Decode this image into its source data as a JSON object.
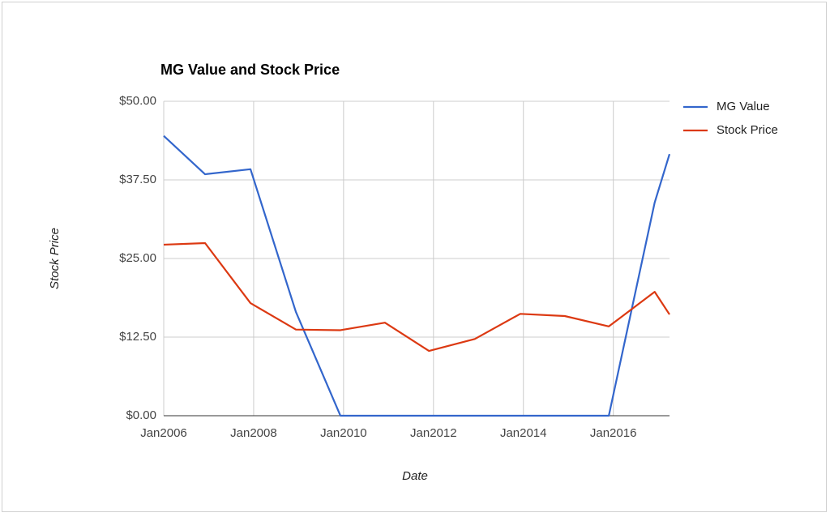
{
  "chart_data": {
    "type": "line",
    "title": "MG Value and Stock Price",
    "x_label": "Date",
    "y_label": "Stock Price",
    "x": [
      2006,
      2006.92,
      2007.93,
      2008.94,
      2009.93,
      2010.92,
      2011.9,
      2012.92,
      2013.93,
      2014.92,
      2015.9,
      2016.92,
      2017.25
    ],
    "series": [
      {
        "name": "MG Value",
        "color": "#3366cc",
        "values": [
          44.5,
          38.4,
          39.2,
          16.5,
          0,
          0,
          0,
          0,
          0,
          0,
          0,
          33.9,
          41.6
        ]
      },
      {
        "name": "Stock Price",
        "color": "#dc3912",
        "values": [
          27.2,
          27.45,
          17.9,
          13.7,
          13.6,
          14.8,
          10.3,
          12.2,
          16.2,
          15.85,
          14.2,
          19.7,
          16.1
        ]
      }
    ],
    "xlim": [
      2006,
      2017.25
    ],
    "xticks": [
      {
        "value": 2006,
        "label": "Jan2006"
      },
      {
        "value": 2008,
        "label": "Jan2008"
      },
      {
        "value": 2010,
        "label": "Jan2010"
      },
      {
        "value": 2012,
        "label": "Jan2012"
      },
      {
        "value": 2014,
        "label": "Jan2014"
      },
      {
        "value": 2016,
        "label": "Jan2016"
      }
    ],
    "ylim": [
      0,
      50
    ],
    "yticks": [
      {
        "value": 0,
        "label": "$0.00"
      },
      {
        "value": 12.5,
        "label": "$12.50"
      },
      {
        "value": 25,
        "label": "$25.00"
      },
      {
        "value": 37.5,
        "label": "$37.50"
      },
      {
        "value": 50,
        "label": "$50.00"
      }
    ],
    "grid": true,
    "legend": "right"
  }
}
